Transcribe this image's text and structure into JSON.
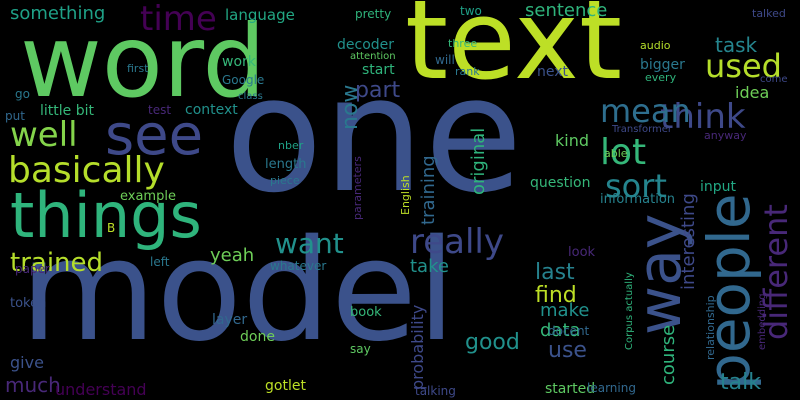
{
  "words": [
    {
      "text": "model",
      "color": "#3b528b",
      "rot": 0
    },
    {
      "text": "one",
      "color": "#3b528b",
      "rot": 0
    },
    {
      "text": "text",
      "color": "#bddf26",
      "rot": 0
    },
    {
      "text": "word",
      "color": "#5ec962",
      "rot": 0
    },
    {
      "text": "things",
      "color": "#2fb47c",
      "rot": 0
    },
    {
      "text": "see",
      "color": "#3e4989",
      "rot": 0
    },
    {
      "text": "people",
      "color": "#31688e",
      "rot": -90
    },
    {
      "text": "way",
      "color": "#3b528b",
      "rot": -90
    },
    {
      "text": "basically",
      "color": "#b5de2b",
      "rot": 0
    },
    {
      "text": "well",
      "color": "#84d44b",
      "rot": 0
    },
    {
      "text": "time",
      "color": "#440154",
      "rot": 0
    },
    {
      "text": "used",
      "color": "#b5de2b",
      "rot": 0
    },
    {
      "text": "think",
      "color": "#3e4989",
      "rot": 0
    },
    {
      "text": "mean",
      "color": "#2e6e8e",
      "rot": 0
    },
    {
      "text": "lot",
      "color": "#35b779",
      "rot": 0
    },
    {
      "text": "sort",
      "color": "#25858e",
      "rot": 0
    },
    {
      "text": "different",
      "color": "#482878",
      "rot": -90
    },
    {
      "text": "really",
      "color": "#3e4989",
      "rot": 0
    },
    {
      "text": "want",
      "color": "#21918c",
      "rot": 0
    },
    {
      "text": "trained",
      "color": "#b5de2b",
      "rot": 0
    },
    {
      "text": "now",
      "color": "#2a788e",
      "rot": -90
    },
    {
      "text": "something",
      "color": "#1fa187",
      "rot": 0
    },
    {
      "text": "task",
      "color": "#25858e",
      "rot": 0
    },
    {
      "text": "sentence",
      "color": "#2fb47c",
      "rot": 0
    },
    {
      "text": "language",
      "color": "#22a884",
      "rot": 0
    },
    {
      "text": "part",
      "color": "#3e4989",
      "rot": 0
    },
    {
      "text": "training",
      "color": "#31688e",
      "rot": -90
    },
    {
      "text": "original",
      "color": "#2fb47c",
      "rot": -90
    },
    {
      "text": "last",
      "color": "#26828e",
      "rot": 0
    },
    {
      "text": "find",
      "color": "#bddf26",
      "rot": 0
    },
    {
      "text": "good",
      "color": "#21918c",
      "rot": 0
    },
    {
      "text": "use",
      "color": "#3b528b",
      "rot": 0
    },
    {
      "text": "make",
      "color": "#21918c",
      "rot": 0
    },
    {
      "text": "data",
      "color": "#35b779",
      "rot": 0
    },
    {
      "text": "talk",
      "color": "#26828e",
      "rot": 0
    },
    {
      "text": "interesting",
      "color": "#3e4989",
      "rot": -90
    },
    {
      "text": "course",
      "color": "#2fb47c",
      "rot": -90
    },
    {
      "text": "yeah",
      "color": "#6ece58",
      "rot": 0
    },
    {
      "text": "take",
      "color": "#21918c",
      "rot": 0
    },
    {
      "text": "much",
      "color": "#482878",
      "rot": 0
    },
    {
      "text": "give",
      "color": "#3b528b",
      "rot": 0
    },
    {
      "text": "understand",
      "color": "#440154",
      "rot": 0
    },
    {
      "text": "kind",
      "color": "#5ec962",
      "rot": 0
    },
    {
      "text": "idea",
      "color": "#6ece58",
      "rot": 0
    },
    {
      "text": "question",
      "color": "#35b779",
      "rot": 0
    },
    {
      "text": "input",
      "color": "#22a884",
      "rot": 0
    },
    {
      "text": "information",
      "color": "#26828e",
      "rot": 0
    },
    {
      "text": "probability",
      "color": "#3e4989",
      "rot": -90
    },
    {
      "text": "context",
      "color": "#21918c",
      "rot": 0
    },
    {
      "text": "work",
      "color": "#35b779",
      "rot": 0
    },
    {
      "text": "decoder",
      "color": "#21918c",
      "rot": 0
    },
    {
      "text": "start",
      "color": "#2fb47c",
      "rot": 0
    },
    {
      "text": "next",
      "color": "#3b528b",
      "rot": 0
    },
    {
      "text": "bigger",
      "color": "#2a788e",
      "rot": 0
    },
    {
      "text": "Google",
      "color": "#2a788e",
      "rot": 0
    },
    {
      "text": "little bit",
      "color": "#35b779",
      "rot": 0
    },
    {
      "text": "test",
      "color": "#482878",
      "rot": 0
    },
    {
      "text": "will",
      "color": "#31688e",
      "rot": 0
    },
    {
      "text": "pretty",
      "color": "#2fb47c",
      "rot": 0
    },
    {
      "text": "two",
      "color": "#1fa187",
      "rot": 0
    },
    {
      "text": "three",
      "color": "#35b779",
      "rot": 0
    },
    {
      "text": "rank",
      "color": "#2a788e",
      "rot": 0
    },
    {
      "text": "attention",
      "color": "#5ec962",
      "rot": 0
    },
    {
      "text": "first",
      "color": "#2a788e",
      "rot": 0
    },
    {
      "text": "audio",
      "color": "#b5de2b",
      "rot": 0
    },
    {
      "text": "every",
      "color": "#2fb47c",
      "rot": 0
    },
    {
      "text": "talked",
      "color": "#3e4989",
      "rot": 0
    },
    {
      "text": "come",
      "color": "#3e4989",
      "rot": 0
    },
    {
      "text": "Transformer",
      "color": "#3e4989",
      "rot": 0
    },
    {
      "text": "anyway",
      "color": "#482878",
      "rot": 0
    },
    {
      "text": "able",
      "color": "#6ece58",
      "rot": 0
    },
    {
      "text": "class",
      "color": "#2a788e",
      "rot": 0
    },
    {
      "text": "go",
      "color": "#2a788e",
      "rot": 0
    },
    {
      "text": "put",
      "color": "#31688e",
      "rot": 0
    },
    {
      "text": "nber",
      "color": "#1fa187",
      "rot": 0
    },
    {
      "text": "length",
      "color": "#2a788e",
      "rot": 0
    },
    {
      "text": "piece",
      "color": "#2a788e",
      "rot": 0
    },
    {
      "text": "example",
      "color": "#6ece58",
      "rot": 0
    },
    {
      "text": "parameters",
      "color": "#482878",
      "rot": -90
    },
    {
      "text": "English",
      "color": "#bddf26",
      "rot": -90
    },
    {
      "text": "B",
      "color": "#bddf26",
      "rot": 0
    },
    {
      "text": "look",
      "color": "#482878",
      "rot": 0
    },
    {
      "text": "paper",
      "color": "#482878",
      "rot": 0
    },
    {
      "text": "left",
      "color": "#2a788e",
      "rot": 0
    },
    {
      "text": "whatever",
      "color": "#2a788e",
      "rot": 0
    },
    {
      "text": "token",
      "color": "#3b528b",
      "rot": 0
    },
    {
      "text": "layer",
      "color": "#31688e",
      "rot": 0
    },
    {
      "text": "done",
      "color": "#6ece58",
      "rot": 0
    },
    {
      "text": "book",
      "color": "#35b779",
      "rot": 0
    },
    {
      "text": "say",
      "color": "#5ec962",
      "rot": 0
    },
    {
      "text": "gotlet",
      "color": "#bddf26",
      "rot": 0
    },
    {
      "text": "talking",
      "color": "#3e4989",
      "rot": 0
    },
    {
      "text": "started",
      "color": "#5ec962",
      "rot": 0
    },
    {
      "text": "learning",
      "color": "#31688e",
      "rot": 0
    },
    {
      "text": "docent",
      "color": "#31688e",
      "rot": 0
    },
    {
      "text": "Corpus actually",
      "color": "#2fb47c",
      "rot": -90
    },
    {
      "text": "relationship",
      "color": "#31688e",
      "rot": -90
    },
    {
      "text": "embedding",
      "color": "#482878",
      "rot": -90
    }
  ]
}
